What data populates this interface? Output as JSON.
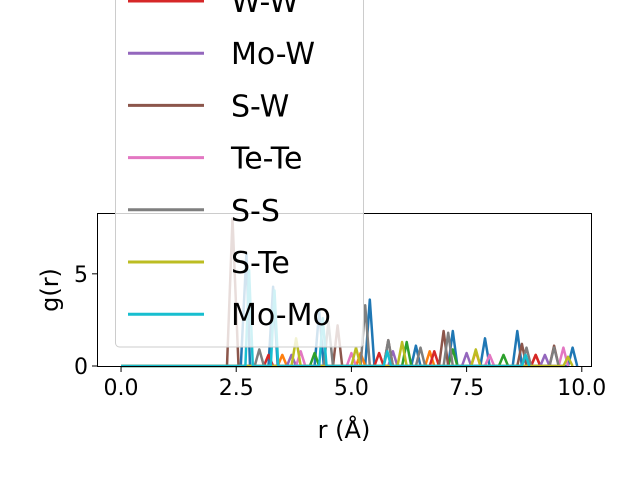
{
  "chart_data": {
    "type": "line",
    "xlabel": "r (Å)",
    "ylabel": "g(r)",
    "xlim": [
      -0.5,
      10.2
    ],
    "ylim": [
      0,
      8.3
    ],
    "xticks": [
      0.0,
      2.5,
      5.0,
      7.5,
      10.0
    ],
    "xtick_labels": [
      "0.0",
      "2.5",
      "5.0",
      "7.5",
      "10.0"
    ],
    "yticks": [
      0,
      5
    ],
    "ytick_labels": [
      "0",
      "5"
    ],
    "grid": false,
    "legend_placement": "upper-left, extending above plot",
    "series": [
      {
        "color": "#1f77b4",
        "x": [
          0,
          2.5,
          2.6,
          2.72,
          2.8,
          3.2,
          3.3,
          3.4,
          4.2,
          4.3,
          4.4,
          5.3,
          5.4,
          5.5,
          6.3,
          6.4,
          6.5,
          7.1,
          7.2,
          7.3,
          7.8,
          7.9,
          8.0,
          8.5,
          8.6,
          8.7,
          9.7,
          9.8,
          9.9
        ],
        "y": [
          0,
          0,
          0,
          6.1,
          0,
          0,
          4.3,
          0,
          0,
          3.0,
          0,
          0,
          3.6,
          0,
          0,
          1.1,
          0,
          0,
          1.9,
          0,
          0,
          1.5,
          0,
          0,
          1.9,
          0,
          0,
          1.0,
          0
        ]
      },
      {
        "color": "#ff7f0e",
        "x": [
          0,
          3.4,
          3.5,
          3.6,
          5.1,
          5.2,
          5.3,
          6.6,
          6.7,
          6.8,
          7.6,
          7.7,
          7.8,
          8.9,
          9.0,
          9.1
        ],
        "y": [
          0,
          0,
          0.6,
          0,
          0,
          0.7,
          0,
          0,
          0.8,
          0,
          0,
          0.8,
          0,
          0,
          0.6,
          0
        ]
      },
      {
        "color": "#2ca02c",
        "x": [
          0,
          4.1,
          4.2,
          4.3,
          6.1,
          6.2,
          6.3,
          7.1,
          7.2,
          7.3,
          8.2,
          8.3,
          8.4
        ],
        "y": [
          0,
          0,
          0.7,
          0,
          0,
          1.3,
          0,
          0,
          0.9,
          0,
          0,
          0.6,
          0
        ]
      },
      {
        "color": "#d62728",
        "x": [
          0,
          3.1,
          3.2,
          3.3,
          5.5,
          5.6,
          5.7,
          6.7,
          6.8,
          6.9,
          8.9,
          9.0,
          9.1
        ],
        "y": [
          0,
          0,
          0.6,
          0,
          0,
          0.7,
          0,
          0,
          0.8,
          0,
          0,
          0.6,
          0
        ]
      },
      {
        "color": "#9467bd",
        "x": [
          0,
          3.6,
          3.7,
          3.8,
          5.8,
          5.9,
          6.0,
          7.4,
          7.5,
          7.6,
          9.1,
          9.2,
          9.3
        ],
        "y": [
          0,
          0,
          0.6,
          0,
          0,
          0.8,
          0,
          0,
          0.7,
          0,
          0,
          0.6,
          0
        ]
      },
      {
        "color": "#8c564b",
        "x": [
          0,
          2.3,
          2.42,
          2.55,
          4.6,
          4.7,
          4.8,
          5.7,
          5.8,
          5.9,
          6.9,
          7.0,
          7.1,
          8.6,
          8.7,
          8.8,
          9.3,
          9.4,
          9.5
        ],
        "y": [
          0,
          0,
          8.0,
          0,
          0,
          2.2,
          0,
          0,
          1.4,
          0,
          0,
          1.9,
          0,
          0,
          1.2,
          0,
          0,
          1.1,
          0
        ]
      },
      {
        "color": "#e377c2",
        "x": [
          0,
          3.8,
          3.9,
          4.0,
          4.9,
          5.0,
          5.1,
          7.9,
          8.0,
          8.1,
          9.5,
          9.6,
          9.7
        ],
        "y": [
          0,
          0,
          0.8,
          0,
          0,
          0.7,
          0,
          0,
          0.6,
          0,
          0,
          1.0,
          0
        ]
      },
      {
        "color": "#7f7f7f",
        "x": [
          0,
          2.9,
          3.0,
          3.1,
          4.4,
          4.5,
          4.6,
          5.2,
          5.3,
          5.4,
          5.7,
          5.8,
          5.9,
          6.4,
          6.5,
          6.6,
          7.0,
          7.1,
          7.2,
          8.7,
          8.8,
          8.9,
          9.3,
          9.4,
          9.5
        ],
        "y": [
          0,
          0,
          0.9,
          0,
          0,
          2.4,
          0,
          0,
          3.3,
          0,
          0,
          1.4,
          0,
          0,
          1.0,
          0,
          0,
          1.8,
          0,
          0,
          1.0,
          0,
          0,
          1.0,
          0
        ]
      },
      {
        "color": "#bcbd22",
        "x": [
          0,
          3.7,
          3.8,
          3.9,
          5.0,
          5.1,
          5.2,
          6.0,
          6.1,
          6.2,
          7.6,
          7.7,
          7.8,
          9.6,
          9.7,
          9.8
        ],
        "y": [
          0,
          0,
          1.5,
          0,
          0,
          1.0,
          0,
          0,
          1.3,
          0,
          0,
          0.9,
          0,
          0,
          0.5,
          0
        ]
      },
      {
        "color": "#17becf",
        "x": [
          0,
          2.7,
          2.78,
          2.86,
          3.25,
          3.33,
          3.41,
          4.3,
          4.38,
          4.46,
          5.7,
          5.78,
          5.86,
          8.7,
          8.78,
          8.86
        ],
        "y": [
          0,
          0,
          5.2,
          0,
          0,
          4.1,
          0,
          0,
          2.6,
          0,
          0,
          0.8,
          0,
          0,
          0.6,
          0
        ]
      }
    ],
    "legend": [
      {
        "label": "W-W",
        "color": "#d62728"
      },
      {
        "label": "Mo-W",
        "color": "#9467bd"
      },
      {
        "label": "S-W",
        "color": "#8c564b"
      },
      {
        "label": "Te-Te",
        "color": "#e377c2"
      },
      {
        "label": "S-S",
        "color": "#7f7f7f"
      },
      {
        "label": "S-Te",
        "color": "#bcbd22"
      },
      {
        "label": "Mo-Mo",
        "color": "#17becf"
      }
    ]
  }
}
